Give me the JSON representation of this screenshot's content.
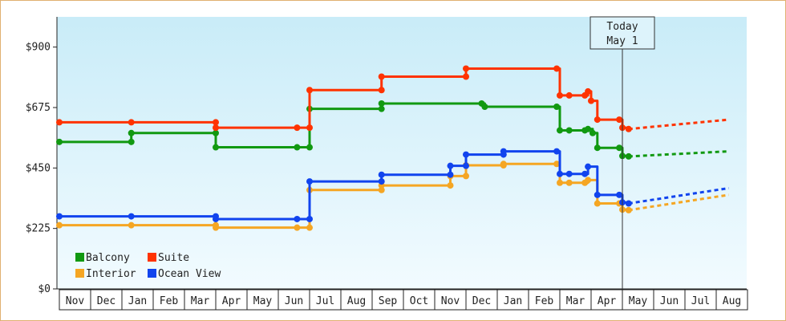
{
  "chart_data": {
    "type": "line",
    "title": "",
    "xlabel": "",
    "ylabel": "",
    "ylim": [
      0,
      1012.5
    ],
    "y_ticks": [
      "$0",
      "$225",
      "$450",
      "$675",
      "$900"
    ],
    "y_tick_values": [
      0,
      225,
      450,
      675,
      900
    ],
    "x_categories": [
      "Nov",
      "Dec",
      "Jan",
      "Feb",
      "Mar",
      "Apr",
      "May",
      "Jun",
      "Jul",
      "Aug",
      "Sep",
      "Oct",
      "Nov",
      "Dec",
      "Jan",
      "Feb",
      "Mar",
      "Apr",
      "May",
      "Jun",
      "Jul",
      "Aug"
    ],
    "x_unit": "months since start of first Nov",
    "grid": false,
    "background": "light-blue gradient",
    "legend_placement": "bottom-left",
    "today_marker": {
      "x": 18.0,
      "line1": "Today",
      "line2": "May 1"
    },
    "series": [
      {
        "name": "Balcony",
        "color": "#119911",
        "step": true,
        "points": [
          [
            0,
            547
          ],
          [
            2.3,
            547
          ],
          [
            2.3,
            580
          ],
          [
            5.0,
            580
          ],
          [
            5.0,
            527
          ],
          [
            7.6,
            527
          ],
          [
            8.0,
            527
          ],
          [
            8.0,
            670
          ],
          [
            10.3,
            670
          ],
          [
            10.3,
            690
          ],
          [
            13.5,
            690
          ],
          [
            13.6,
            678
          ],
          [
            15.9,
            678
          ],
          [
            16.0,
            590
          ],
          [
            16.3,
            590
          ],
          [
            16.8,
            590
          ],
          [
            16.9,
            595
          ],
          [
            17.05,
            580
          ],
          [
            17.2,
            525
          ],
          [
            17.9,
            525
          ],
          [
            18.0,
            495
          ],
          [
            18.2,
            493
          ]
        ],
        "forecast": [
          [
            18.2,
            493
          ],
          [
            21.4,
            512
          ]
        ]
      },
      {
        "name": "Suite",
        "color": "#ff3300",
        "step": true,
        "points": [
          [
            0,
            620
          ],
          [
            2.3,
            620
          ],
          [
            5.0,
            620
          ],
          [
            5.0,
            600
          ],
          [
            7.6,
            600
          ],
          [
            8.0,
            600
          ],
          [
            8.0,
            740
          ],
          [
            10.3,
            740
          ],
          [
            10.3,
            790
          ],
          [
            13.0,
            790
          ],
          [
            13.0,
            820
          ],
          [
            15.9,
            820
          ],
          [
            16.0,
            720
          ],
          [
            16.3,
            720
          ],
          [
            16.8,
            720
          ],
          [
            16.9,
            735
          ],
          [
            17.0,
            700
          ],
          [
            17.2,
            630
          ],
          [
            17.9,
            630
          ],
          [
            18.0,
            600
          ],
          [
            18.2,
            595
          ]
        ],
        "forecast": [
          [
            18.2,
            595
          ],
          [
            21.4,
            630
          ]
        ]
      },
      {
        "name": "Interior",
        "color": "#f5a623",
        "step": true,
        "points": [
          [
            0,
            237
          ],
          [
            2.3,
            237
          ],
          [
            5.0,
            237
          ],
          [
            5.0,
            228
          ],
          [
            7.6,
            228
          ],
          [
            8.0,
            228
          ],
          [
            8.0,
            368
          ],
          [
            10.3,
            368
          ],
          [
            10.3,
            385
          ],
          [
            12.5,
            385
          ],
          [
            12.5,
            420
          ],
          [
            13.0,
            420
          ],
          [
            13.0,
            460
          ],
          [
            14.2,
            460
          ],
          [
            14.2,
            465
          ],
          [
            15.9,
            465
          ],
          [
            16.0,
            395
          ],
          [
            16.3,
            395
          ],
          [
            16.8,
            395
          ],
          [
            16.9,
            405
          ],
          [
            17.2,
            318
          ],
          [
            17.9,
            318
          ],
          [
            18.0,
            295
          ],
          [
            18.2,
            293
          ]
        ],
        "forecast": [
          [
            18.2,
            293
          ],
          [
            21.4,
            350
          ]
        ]
      },
      {
        "name": "Ocean View",
        "color": "#1144ee",
        "step": true,
        "points": [
          [
            0,
            270
          ],
          [
            2.3,
            270
          ],
          [
            5.0,
            270
          ],
          [
            5.0,
            260
          ],
          [
            7.6,
            260
          ],
          [
            8.0,
            260
          ],
          [
            8.0,
            400
          ],
          [
            10.3,
            400
          ],
          [
            10.3,
            425
          ],
          [
            12.5,
            425
          ],
          [
            12.5,
            458
          ],
          [
            13.0,
            458
          ],
          [
            13.0,
            500
          ],
          [
            14.2,
            500
          ],
          [
            14.2,
            512
          ],
          [
            15.9,
            512
          ],
          [
            16.0,
            428
          ],
          [
            16.3,
            428
          ],
          [
            16.8,
            428
          ],
          [
            16.9,
            455
          ],
          [
            17.2,
            350
          ],
          [
            17.9,
            350
          ],
          [
            18.0,
            322
          ],
          [
            18.2,
            318
          ]
        ],
        "forecast": [
          [
            18.2,
            318
          ],
          [
            21.4,
            375
          ]
        ]
      }
    ]
  },
  "legend": [
    {
      "label": "Balcony",
      "color": "#119911"
    },
    {
      "label": "Suite",
      "color": "#ff3300"
    },
    {
      "label": "Interior",
      "color": "#f5a623"
    },
    {
      "label": "Ocean View",
      "color": "#1144ee"
    }
  ],
  "today": {
    "line1": "Today",
    "line2": "May 1"
  }
}
